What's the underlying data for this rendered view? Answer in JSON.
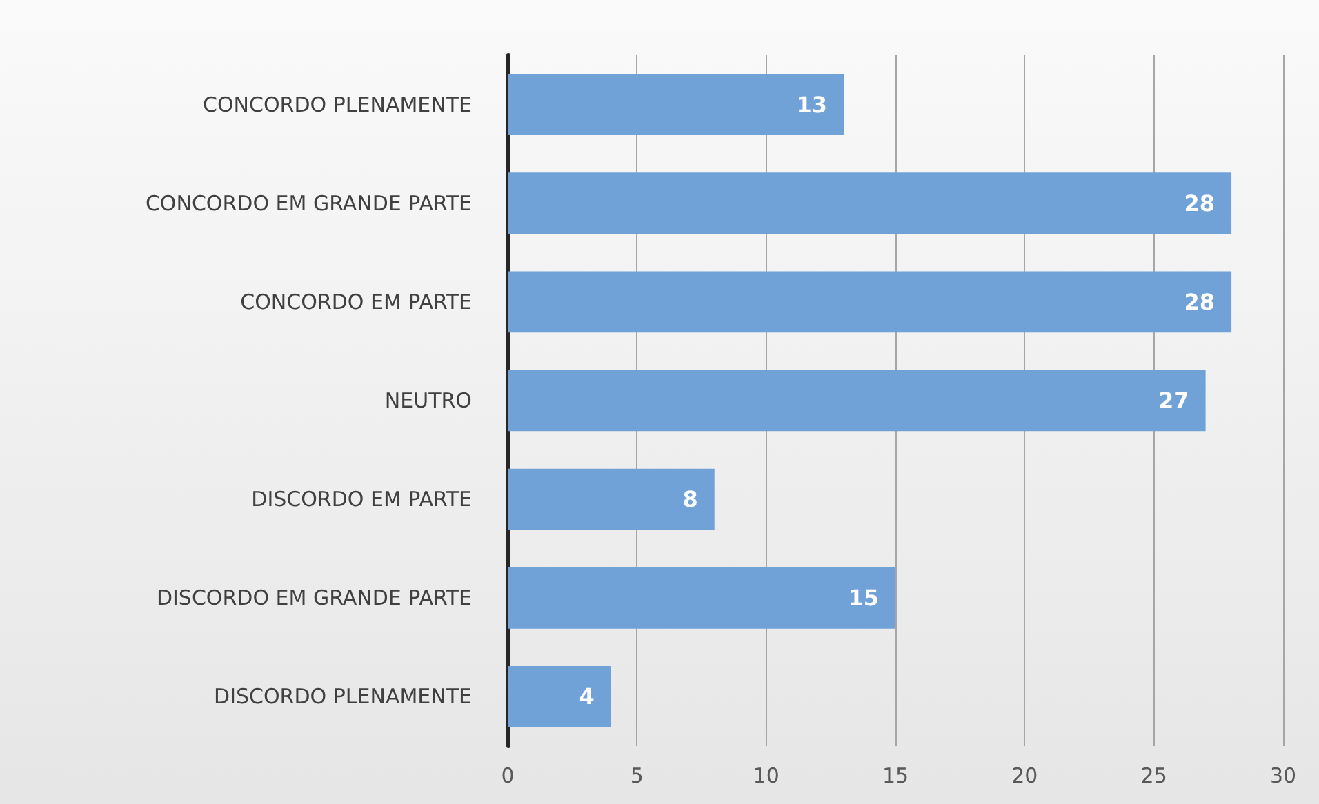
{
  "chart_data": {
    "type": "bar",
    "orientation": "horizontal",
    "categories": [
      "CONCORDO PLENAMENTE",
      "CONCORDO EM GRANDE PARTE",
      "CONCORDO EM PARTE",
      "NEUTRO",
      "DISCORDO EM PARTE",
      "DISCORDO EM GRANDE PARTE",
      "DISCORDO PLENAMENTE"
    ],
    "values": [
      13,
      28,
      28,
      27,
      8,
      15,
      4
    ],
    "color": "#70a2d8",
    "xlim": [
      0,
      30
    ],
    "xticks": [
      0,
      5,
      10,
      15,
      20,
      25,
      30
    ],
    "grid": "x",
    "data_labels": true
  }
}
